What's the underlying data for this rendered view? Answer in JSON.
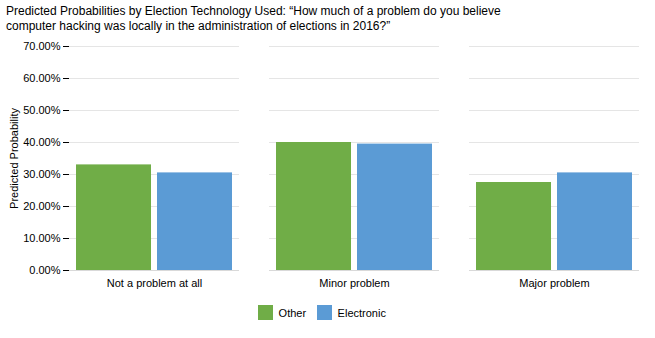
{
  "chart_data": {
    "type": "bar",
    "title": "Predicted Probabilities by Election Technology Used: “How much of a problem do you believe",
    "subtitle": "computer hacking was locally in the administration of elections in 2016?”",
    "categories": [
      "Not a problem at all",
      "Minor problem",
      "Major problem"
    ],
    "series": [
      {
        "name": "Other",
        "color": "#70AD47",
        "values": [
          0.33,
          0.4,
          0.275
        ]
      },
      {
        "name": "Electronic",
        "color": "#5B9BD5",
        "values": [
          0.305,
          0.395,
          0.305
        ]
      }
    ],
    "ylabel": "Predicted Probability",
    "ylim": [
      0,
      0.7
    ],
    "yticks": [
      {
        "value": 0.0,
        "label": "0.00%"
      },
      {
        "value": 0.1,
        "label": "10.00%"
      },
      {
        "value": 0.2,
        "label": "20.00%"
      },
      {
        "value": 0.3,
        "label": "30.00%"
      },
      {
        "value": 0.4,
        "label": "40.00%"
      },
      {
        "value": 0.5,
        "label": "50.00%"
      },
      {
        "value": 0.6,
        "label": "60.00%"
      },
      {
        "value": 0.7,
        "label": "70.00%"
      }
    ],
    "grid": true,
    "legend": "bottom"
  }
}
